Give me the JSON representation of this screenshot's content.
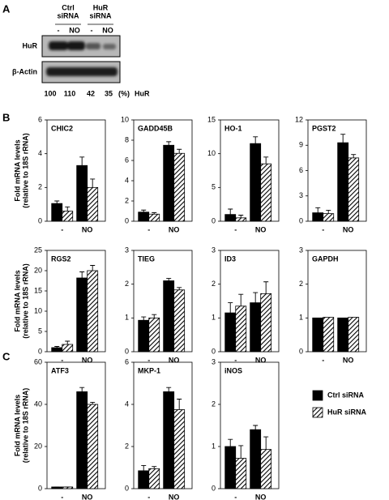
{
  "panels": [
    "A",
    "B",
    "C"
  ],
  "blot": {
    "groups": [
      [
        "Ctrl",
        "siRNA"
      ],
      [
        "HuR",
        "siRNA"
      ]
    ],
    "lanes": [
      "-",
      "NO",
      "-",
      "NO"
    ],
    "rows": [
      "HuR",
      "β-Actin"
    ],
    "quantification": {
      "values": [
        100,
        110,
        42,
        35
      ],
      "unit": "(%)",
      "label": "HuR"
    }
  },
  "legend": [
    {
      "name": "Ctrl siRNA",
      "fill": "solid",
      "color": "#000000"
    },
    {
      "name": "HuR siRNA",
      "fill": "hatch",
      "color": "#000000"
    }
  ],
  "chart_data": [
    {
      "type": "bar",
      "title": "CHIC2",
      "ylabel": [
        "Fold mRNA levels",
        "(relative to 18S rRNA)"
      ],
      "categories": [
        "-",
        "NO"
      ],
      "ylim": [
        0,
        6
      ],
      "yticks": [
        0,
        2,
        4,
        6
      ],
      "series": [
        {
          "values": [
            1.05,
            3.3
          ],
          "errors": [
            0.15,
            0.5
          ]
        },
        {
          "values": [
            0.6,
            2.0
          ],
          "errors": [
            0.25,
            0.5
          ]
        }
      ]
    },
    {
      "type": "bar",
      "title": "GADD45B",
      "categories": [
        "-",
        "NO"
      ],
      "ylim": [
        0,
        10
      ],
      "yticks": [
        0,
        2,
        4,
        6,
        8,
        10
      ],
      "series": [
        {
          "values": [
            0.9,
            7.5
          ],
          "errors": [
            0.2,
            0.35
          ]
        },
        {
          "values": [
            0.7,
            6.7
          ],
          "errors": [
            0.15,
            0.4
          ]
        }
      ]
    },
    {
      "type": "bar",
      "title": "HO-1",
      "categories": [
        "-",
        "NO"
      ],
      "ylim": [
        0,
        15
      ],
      "yticks": [
        0,
        5,
        10,
        15
      ],
      "series": [
        {
          "values": [
            1.0,
            11.5
          ],
          "errors": [
            0.8,
            1.0
          ]
        },
        {
          "values": [
            0.5,
            8.5
          ],
          "errors": [
            0.4,
            1.0
          ]
        }
      ]
    },
    {
      "type": "bar",
      "title": "PGST2",
      "categories": [
        "-",
        "NO"
      ],
      "ylim": [
        0,
        12
      ],
      "yticks": [
        0,
        3,
        6,
        9,
        12
      ],
      "series": [
        {
          "values": [
            1.0,
            9.3
          ],
          "errors": [
            0.6,
            1.0
          ]
        },
        {
          "values": [
            0.9,
            7.5
          ],
          "errors": [
            0.4,
            0.4
          ]
        }
      ]
    },
    {
      "type": "bar",
      "title": "RGS2",
      "ylabel": [
        "Fold mRNA levels",
        "(relative to 18S rRNA)"
      ],
      "categories": [
        "-",
        "NO"
      ],
      "ylim": [
        0,
        25
      ],
      "yticks": [
        0,
        5,
        10,
        15,
        20,
        25
      ],
      "series": [
        {
          "values": [
            1.0,
            18.2
          ],
          "errors": [
            0.3,
            1.5
          ]
        },
        {
          "values": [
            1.8,
            20.0
          ],
          "errors": [
            0.8,
            1.3
          ]
        }
      ]
    },
    {
      "type": "bar",
      "title": "TIEG",
      "categories": [
        "-",
        "NO"
      ],
      "ylim": [
        0,
        3
      ],
      "yticks": [
        0,
        1,
        2,
        3
      ],
      "series": [
        {
          "values": [
            0.93,
            2.1
          ],
          "errors": [
            0.1,
            0.07
          ]
        },
        {
          "values": [
            1.0,
            1.83
          ],
          "errors": [
            0.1,
            0.07
          ]
        }
      ]
    },
    {
      "type": "bar",
      "title": "ID3",
      "categories": [
        "-",
        "NO"
      ],
      "ylim": [
        0,
        3
      ],
      "yticks": [
        0,
        1,
        2,
        3
      ],
      "series": [
        {
          "values": [
            1.15,
            1.45
          ],
          "errors": [
            0.3,
            0.3
          ]
        },
        {
          "values": [
            1.35,
            1.72
          ],
          "errors": [
            0.35,
            0.35
          ]
        }
      ]
    },
    {
      "type": "bar",
      "title": "GAPDH",
      "categories": [
        "-",
        "NO"
      ],
      "ylim": [
        0,
        3
      ],
      "yticks": [
        0,
        1,
        2,
        3
      ],
      "series": [
        {
          "values": [
            1.0,
            1.0
          ]
        },
        {
          "values": [
            1.02,
            1.02
          ]
        }
      ]
    },
    {
      "type": "bar",
      "title": "ATF3",
      "ylabel": [
        "Fold mRNA levels",
        "(relative to 18S rRNA)"
      ],
      "categories": [
        "-",
        "NO"
      ],
      "ylim": [
        0,
        60
      ],
      "yticks": [
        0,
        20,
        40,
        60
      ],
      "series": [
        {
          "values": [
            0.8,
            46
          ],
          "errors": [
            0,
            2
          ]
        },
        {
          "values": [
            0.8,
            40
          ],
          "errors": [
            0,
            1
          ]
        }
      ]
    },
    {
      "type": "bar",
      "title": "MKP-1",
      "categories": [
        "-",
        "NO"
      ],
      "ylim": [
        0,
        6
      ],
      "yticks": [
        0,
        2,
        4,
        6
      ],
      "series": [
        {
          "values": [
            0.85,
            4.6
          ],
          "errors": [
            0.25,
            0.2
          ]
        },
        {
          "values": [
            0.95,
            3.75
          ],
          "errors": [
            0.1,
            0.5
          ]
        }
      ]
    },
    {
      "type": "bar",
      "title": "iNOS",
      "categories": [
        "-",
        "NO"
      ],
      "ylim": [
        0,
        3
      ],
      "yticks": [
        0,
        1,
        2,
        3
      ],
      "series": [
        {
          "values": [
            1.0,
            1.4
          ],
          "errors": [
            0.17,
            0.1
          ]
        },
        {
          "values": [
            0.72,
            0.93
          ],
          "errors": [
            0.3,
            0.3
          ]
        }
      ]
    }
  ]
}
